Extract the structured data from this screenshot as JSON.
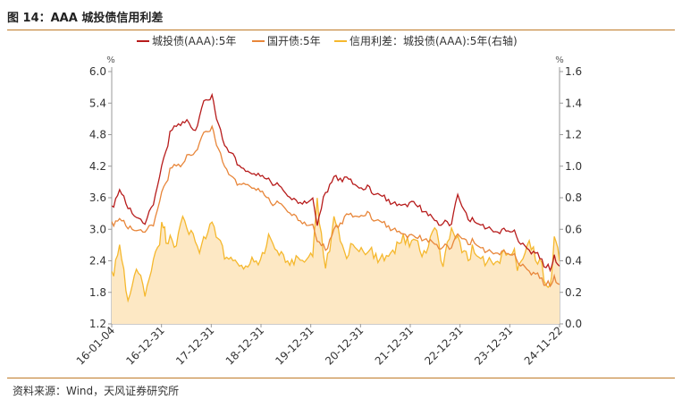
{
  "figure_title": "图 14：AAA 城投债信用利差",
  "source": "资料来源：Wind，天风证券研究所",
  "colors": {
    "chengtou": "#b71c1c",
    "guokai": "#e8863a",
    "spread_line": "#f5b82e",
    "spread_fill": "#fde8c4",
    "rule": "#c07a28"
  },
  "chart_data": {
    "type": "line",
    "title": "",
    "legend_position": "top",
    "left_axis": {
      "unit": "%",
      "ylim": [
        1.2,
        6.0
      ],
      "ticks": [
        "6.0",
        "5.4",
        "4.8",
        "4.2",
        "3.6",
        "3.0",
        "2.4",
        "1.8",
        "1.2"
      ]
    },
    "right_axis": {
      "unit": "%",
      "ylim": [
        0.0,
        1.6
      ],
      "ticks": [
        "1.6",
        "1.4",
        "1.2",
        "1.0",
        "0.8",
        "0.6",
        "0.4",
        "0.2",
        "0.0"
      ]
    },
    "x_ticks": [
      "16-01-04",
      "16-12-31",
      "17-12-31",
      "18-12-31",
      "19-12-31",
      "20-12-31",
      "21-12-31",
      "22-12-31",
      "23-12-31",
      "24-11-22"
    ],
    "series": [
      {
        "name": "城投债(AAA):5年",
        "axis": "left",
        "x": [
          "2016-01-04",
          "2016-03-01",
          "2016-06-01",
          "2016-09-01",
          "2016-11-01",
          "2016-12-31",
          "2017-03-01",
          "2017-06-01",
          "2017-09-01",
          "2017-11-01",
          "2017-12-31",
          "2018-02-01",
          "2018-04-01",
          "2018-06-01",
          "2018-09-01",
          "2018-12-31",
          "2019-03-01",
          "2019-06-01",
          "2019-09-01",
          "2019-12-31",
          "2020-02-01",
          "2020-04-01",
          "2020-06-01",
          "2020-09-01",
          "2020-12-31",
          "2021-03-01",
          "2021-06-01",
          "2021-09-01",
          "2021-12-31",
          "2022-03-01",
          "2022-06-01",
          "2022-08-01",
          "2022-10-01",
          "2022-11-15",
          "2022-12-31",
          "2023-03-01",
          "2023-06-01",
          "2023-09-01",
          "2023-12-31",
          "2024-03-01",
          "2024-06-01",
          "2024-08-01",
          "2024-09-15",
          "2024-10-15",
          "2024-11-22"
        ],
        "values": [
          3.4,
          3.75,
          3.3,
          3.1,
          3.5,
          4.2,
          4.8,
          5.1,
          4.9,
          5.4,
          5.5,
          5.1,
          4.6,
          4.4,
          4.1,
          4.0,
          3.9,
          3.75,
          3.5,
          3.55,
          3.1,
          3.7,
          4.0,
          3.95,
          3.8,
          3.75,
          3.6,
          3.45,
          3.5,
          3.35,
          3.2,
          3.1,
          3.15,
          3.65,
          3.35,
          3.15,
          3.05,
          2.95,
          2.95,
          2.7,
          2.55,
          2.35,
          2.25,
          2.45,
          2.3
        ]
      },
      {
        "name": "国开债:5年",
        "axis": "left",
        "x": [
          "2016-01-04",
          "2016-03-01",
          "2016-06-01",
          "2016-09-01",
          "2016-11-01",
          "2016-12-31",
          "2017-03-01",
          "2017-06-01",
          "2017-09-01",
          "2017-11-01",
          "2017-12-31",
          "2018-02-01",
          "2018-04-01",
          "2018-06-01",
          "2018-09-01",
          "2018-12-31",
          "2019-03-01",
          "2019-06-01",
          "2019-09-01",
          "2019-12-31",
          "2020-02-01",
          "2020-04-01",
          "2020-06-01",
          "2020-09-01",
          "2020-12-31",
          "2021-03-01",
          "2021-06-01",
          "2021-09-01",
          "2021-12-31",
          "2022-03-01",
          "2022-06-01",
          "2022-08-01",
          "2022-10-01",
          "2022-11-15",
          "2022-12-31",
          "2023-03-01",
          "2023-06-01",
          "2023-09-01",
          "2023-12-31",
          "2024-03-01",
          "2024-06-01",
          "2024-08-01",
          "2024-09-15",
          "2024-10-15",
          "2024-11-22"
        ],
        "values": [
          3.1,
          3.2,
          3.0,
          2.95,
          3.1,
          3.7,
          4.1,
          4.3,
          4.5,
          4.8,
          4.9,
          4.6,
          4.2,
          3.95,
          3.85,
          3.7,
          3.5,
          3.45,
          3.2,
          3.05,
          2.8,
          2.6,
          3.0,
          3.25,
          3.3,
          3.25,
          3.1,
          2.95,
          2.85,
          2.8,
          2.75,
          2.65,
          2.7,
          2.9,
          2.8,
          2.75,
          2.6,
          2.55,
          2.5,
          2.3,
          2.15,
          2.0,
          1.95,
          2.05,
          1.95
        ]
      },
      {
        "name": "信用利差：城投债(AAA):5年(右轴)",
        "axis": "right",
        "x": [
          "2016-01-04",
          "2016-03-01",
          "2016-05-01",
          "2016-07-01",
          "2016-09-01",
          "2016-11-01",
          "2016-12-31",
          "2017-02-01",
          "2017-04-01",
          "2017-06-01",
          "2017-08-01",
          "2017-10-01",
          "2017-12-31",
          "2018-03-01",
          "2018-06-01",
          "2018-09-01",
          "2018-12-31",
          "2019-03-01",
          "2019-06-01",
          "2019-09-01",
          "2019-12-31",
          "2020-02-01",
          "2020-04-01",
          "2020-06-01",
          "2020-09-01",
          "2020-12-31",
          "2021-03-01",
          "2021-06-01",
          "2021-09-01",
          "2021-12-31",
          "2022-03-01",
          "2022-06-01",
          "2022-08-01",
          "2022-10-01",
          "2022-12-31",
          "2023-03-01",
          "2023-06-01",
          "2023-09-01",
          "2023-12-31",
          "2024-02-01",
          "2024-04-01",
          "2024-06-01",
          "2024-08-01",
          "2024-09-15",
          "2024-10-15",
          "2024-11-22"
        ],
        "values": [
          0.3,
          0.5,
          0.15,
          0.35,
          0.2,
          0.4,
          0.6,
          0.55,
          0.5,
          0.65,
          0.55,
          0.45,
          0.65,
          0.5,
          0.4,
          0.35,
          0.45,
          0.55,
          0.4,
          0.4,
          0.45,
          0.8,
          0.35,
          0.65,
          0.45,
          0.5,
          0.45,
          0.4,
          0.5,
          0.55,
          0.45,
          0.6,
          0.4,
          0.6,
          0.45,
          0.45,
          0.4,
          0.4,
          0.45,
          0.35,
          0.5,
          0.45,
          0.3,
          0.2,
          0.55,
          0.4
        ]
      }
    ]
  }
}
